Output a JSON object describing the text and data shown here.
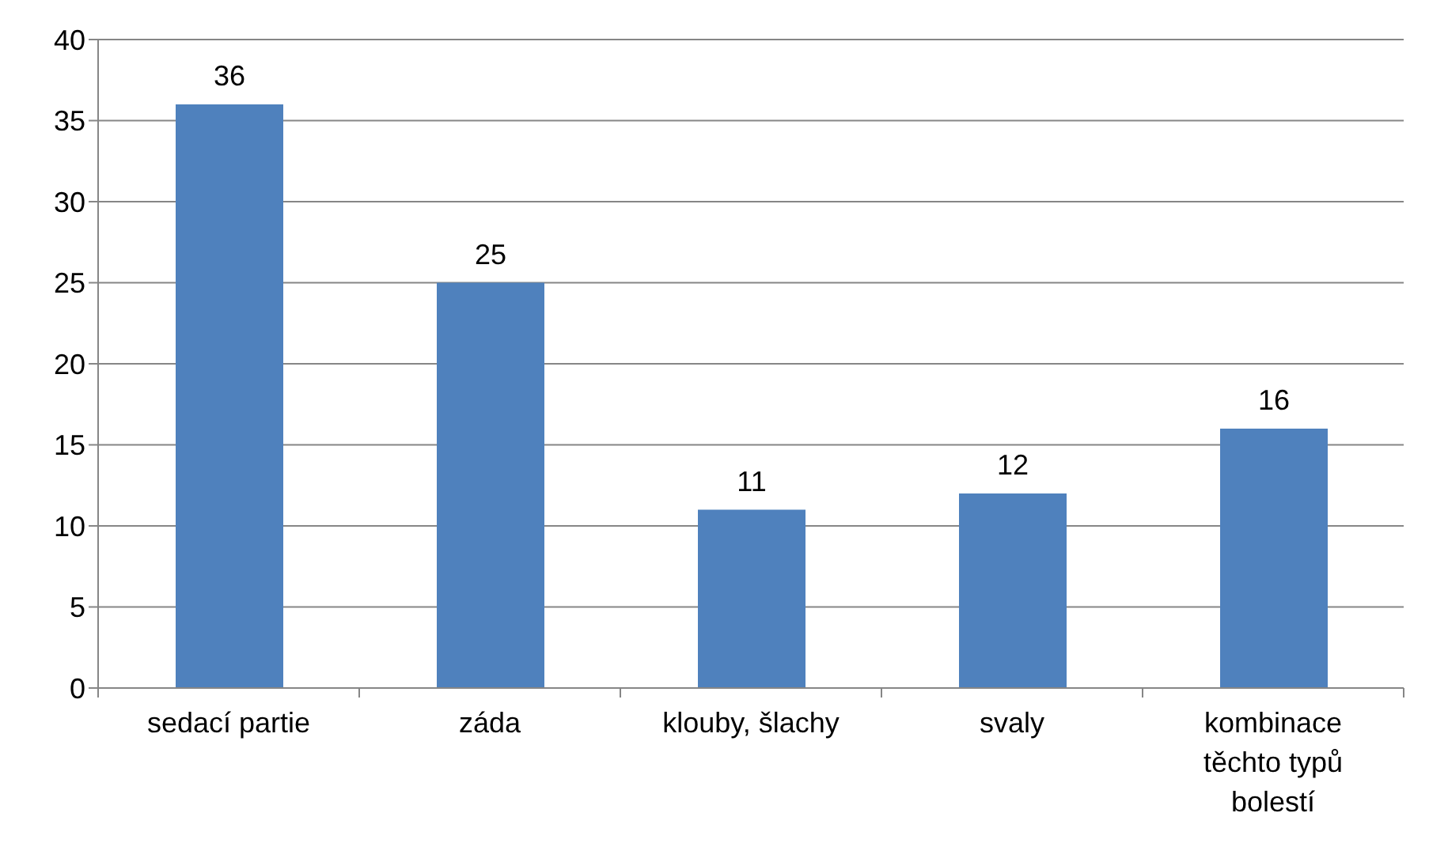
{
  "chart_data": {
    "type": "bar",
    "categories": [
      "sedací partie",
      "záda",
      "klouby, šlachy",
      "svaly",
      "kombinace těchto typů bolestí"
    ],
    "values": [
      36,
      25,
      11,
      12,
      16
    ],
    "color": "#4f81bd",
    "ylim": [
      0,
      40
    ],
    "yticks": [
      0,
      5,
      10,
      15,
      20,
      25,
      30,
      35,
      40
    ],
    "grid": "y",
    "data_labels": true
  }
}
